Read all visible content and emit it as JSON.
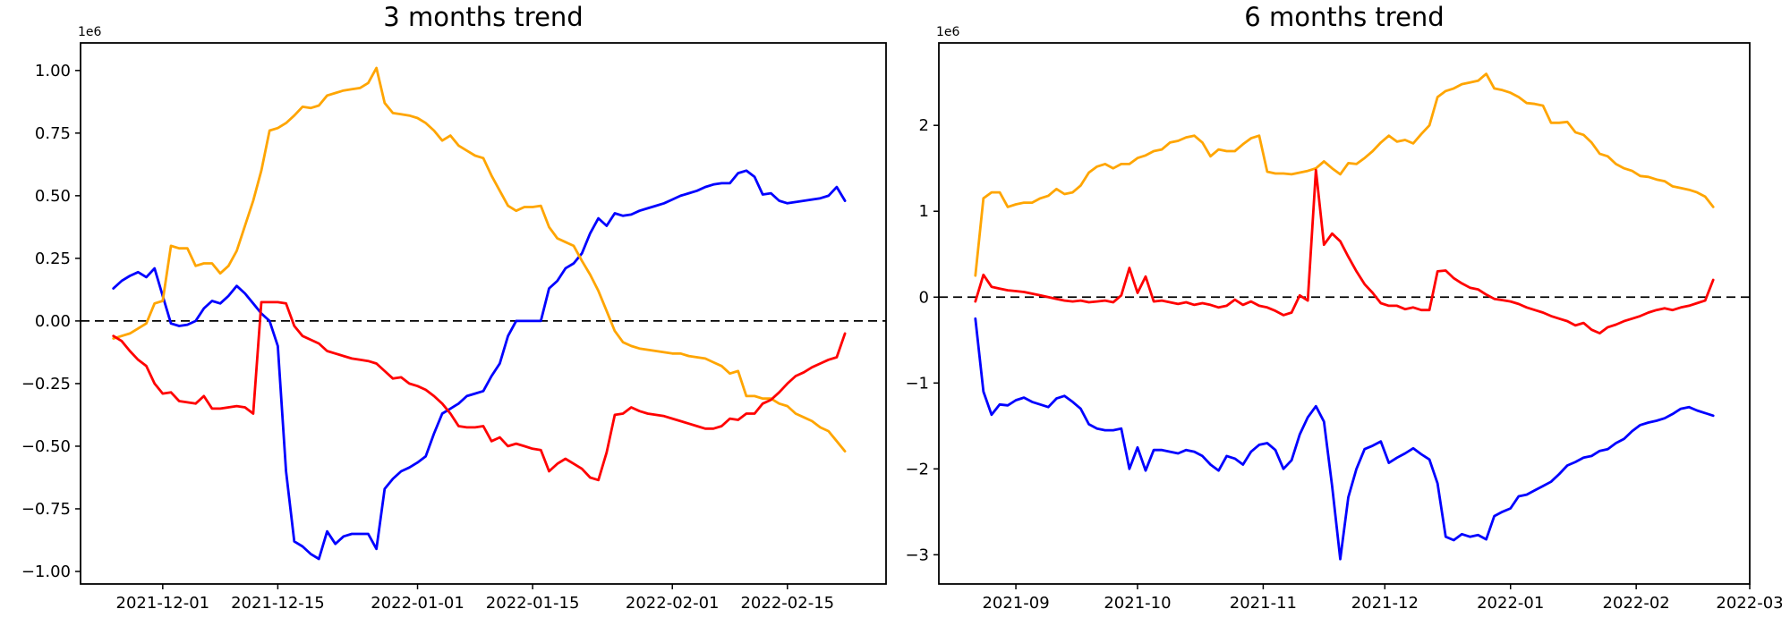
{
  "page": {
    "kind": "matplotlib-figure",
    "background": "#ffffff"
  },
  "chart_data": [
    {
      "type": "line",
      "title": "3 months trend",
      "offset_label": "1e6",
      "value_unit": "1e6 (values below are in millions)",
      "grid": false,
      "legend": "none",
      "zero_dashed_line": true,
      "xlim": [
        "2021-11-21",
        "2022-02-27"
      ],
      "ylim": [
        -1.05,
        1.11
      ],
      "xticks": [
        {
          "date": "2021-12-01",
          "label": "2021-12-01"
        },
        {
          "date": "2021-12-15",
          "label": "2021-12-15"
        },
        {
          "date": "2022-01-01",
          "label": "2022-01-01"
        },
        {
          "date": "2022-01-15",
          "label": "2022-01-15"
        },
        {
          "date": "2022-02-01",
          "label": "2022-02-01"
        },
        {
          "date": "2022-02-15",
          "label": "2022-02-15"
        }
      ],
      "yticks": [
        {
          "v": 1.0,
          "label": "1.00"
        },
        {
          "v": 0.75,
          "label": "0.75"
        },
        {
          "v": 0.5,
          "label": "0.50"
        },
        {
          "v": 0.25,
          "label": "0.25"
        },
        {
          "v": 0.0,
          "label": "0.00"
        },
        {
          "v": -0.25,
          "label": "−0.25"
        },
        {
          "v": -0.5,
          "label": "−0.50"
        },
        {
          "v": -0.75,
          "label": "−0.75"
        },
        {
          "v": -1.0,
          "label": "−1.00"
        }
      ],
      "x": [
        "2021-11-25",
        "2021-11-26",
        "2021-11-27",
        "2021-11-28",
        "2021-11-29",
        "2021-11-30",
        "2021-12-01",
        "2021-12-02",
        "2021-12-03",
        "2021-12-04",
        "2021-12-05",
        "2021-12-06",
        "2021-12-07",
        "2021-12-08",
        "2021-12-09",
        "2021-12-10",
        "2021-12-11",
        "2021-12-12",
        "2021-12-13",
        "2021-12-14",
        "2021-12-15",
        "2021-12-16",
        "2021-12-17",
        "2021-12-18",
        "2021-12-19",
        "2021-12-20",
        "2021-12-21",
        "2021-12-22",
        "2021-12-23",
        "2021-12-24",
        "2021-12-25",
        "2021-12-26",
        "2021-12-27",
        "2021-12-28",
        "2021-12-29",
        "2021-12-30",
        "2021-12-31",
        "2022-01-01",
        "2022-01-02",
        "2022-01-03",
        "2022-01-04",
        "2022-01-05",
        "2022-01-06",
        "2022-01-07",
        "2022-01-08",
        "2022-01-09",
        "2022-01-10",
        "2022-01-11",
        "2022-01-12",
        "2022-01-13",
        "2022-01-14",
        "2022-01-15",
        "2022-01-16",
        "2022-01-17",
        "2022-01-18",
        "2022-01-19",
        "2022-01-20",
        "2022-01-21",
        "2022-01-22",
        "2022-01-23",
        "2022-01-24",
        "2022-01-25",
        "2022-01-26",
        "2022-01-27",
        "2022-01-28",
        "2022-01-29",
        "2022-01-30",
        "2022-01-31",
        "2022-02-01",
        "2022-02-02",
        "2022-02-03",
        "2022-02-04",
        "2022-02-05",
        "2022-02-06",
        "2022-02-07",
        "2022-02-08",
        "2022-02-09",
        "2022-02-10",
        "2022-02-11",
        "2022-02-12",
        "2022-02-13",
        "2022-02-14",
        "2022-02-15",
        "2022-02-16",
        "2022-02-17",
        "2022-02-18",
        "2022-02-19",
        "2022-02-20",
        "2022-02-21",
        "2022-02-22"
      ],
      "series": [
        {
          "name": "blue",
          "color": "#0000ff",
          "values": [
            0.13,
            0.16,
            0.18,
            0.195,
            0.175,
            0.21,
            0.1,
            -0.01,
            -0.02,
            -0.015,
            0.0,
            0.05,
            0.08,
            0.07,
            0.1,
            0.14,
            0.11,
            0.07,
            0.03,
            0.0,
            -0.1,
            -0.6,
            -0.88,
            -0.9,
            -0.93,
            -0.95,
            -0.84,
            -0.89,
            -0.86,
            -0.85,
            -0.85,
            -0.85,
            -0.91,
            -0.67,
            -0.63,
            -0.6,
            -0.585,
            -0.565,
            -0.54,
            -0.45,
            -0.37,
            -0.35,
            -0.33,
            -0.3,
            -0.29,
            -0.28,
            -0.22,
            -0.17,
            -0.06,
            0.0,
            0.0,
            0.0,
            0.0,
            0.13,
            0.16,
            0.21,
            0.23,
            0.27,
            0.35,
            0.41,
            0.38,
            0.43,
            0.42,
            0.425,
            0.44,
            0.45,
            0.46,
            0.47,
            0.485,
            0.5,
            0.51,
            0.52,
            0.535,
            0.545,
            0.55,
            0.55,
            0.59,
            0.6,
            0.575,
            0.505,
            0.51,
            0.48,
            0.47,
            0.475,
            0.48,
            0.485,
            0.49,
            0.5,
            0.535,
            0.48
          ]
        },
        {
          "name": "orange",
          "color": "#ffa500",
          "values": [
            -0.07,
            -0.06,
            -0.05,
            -0.03,
            -0.01,
            0.07,
            0.08,
            0.3,
            0.29,
            0.29,
            0.22,
            0.23,
            0.23,
            0.19,
            0.22,
            0.28,
            0.38,
            0.48,
            0.6,
            0.76,
            0.77,
            0.79,
            0.82,
            0.855,
            0.85,
            0.86,
            0.9,
            0.91,
            0.92,
            0.925,
            0.93,
            0.95,
            1.01,
            0.87,
            0.83,
            0.825,
            0.82,
            0.81,
            0.79,
            0.76,
            0.72,
            0.74,
            0.7,
            0.68,
            0.66,
            0.65,
            0.58,
            0.52,
            0.46,
            0.44,
            0.455,
            0.455,
            0.46,
            0.375,
            0.33,
            0.315,
            0.3,
            0.24,
            0.185,
            0.12,
            0.04,
            -0.04,
            -0.085,
            -0.1,
            -0.11,
            -0.115,
            -0.12,
            -0.125,
            -0.13,
            -0.13,
            -0.14,
            -0.145,
            -0.15,
            -0.165,
            -0.18,
            -0.21,
            -0.2,
            -0.3,
            -0.3,
            -0.31,
            -0.31,
            -0.33,
            -0.34,
            -0.37,
            -0.385,
            -0.4,
            -0.425,
            -0.44,
            -0.48,
            -0.52
          ]
        },
        {
          "name": "red",
          "color": "#ff0000",
          "values": [
            -0.06,
            -0.08,
            -0.12,
            -0.155,
            -0.18,
            -0.25,
            -0.29,
            -0.285,
            -0.32,
            -0.325,
            -0.33,
            -0.3,
            -0.35,
            -0.35,
            -0.345,
            -0.34,
            -0.345,
            -0.37,
            0.075,
            0.075,
            0.075,
            0.07,
            -0.02,
            -0.06,
            -0.075,
            -0.09,
            -0.12,
            -0.13,
            -0.14,
            -0.15,
            -0.155,
            -0.16,
            -0.17,
            -0.2,
            -0.23,
            -0.225,
            -0.25,
            -0.26,
            -0.275,
            -0.3,
            -0.33,
            -0.37,
            -0.42,
            -0.425,
            -0.425,
            -0.42,
            -0.48,
            -0.465,
            -0.5,
            -0.49,
            -0.5,
            -0.51,
            -0.515,
            -0.6,
            -0.57,
            -0.55,
            -0.57,
            -0.59,
            -0.625,
            -0.635,
            -0.525,
            -0.375,
            -0.37,
            -0.345,
            -0.36,
            -0.37,
            -0.375,
            -0.38,
            -0.39,
            -0.4,
            -0.41,
            -0.42,
            -0.43,
            -0.43,
            -0.42,
            -0.39,
            -0.395,
            -0.37,
            -0.37,
            -0.33,
            -0.315,
            -0.285,
            -0.25,
            -0.22,
            -0.205,
            -0.185,
            -0.17,
            -0.155,
            -0.145,
            -0.05
          ]
        }
      ]
    },
    {
      "type": "line",
      "title": "6 months trend",
      "offset_label": "1e6",
      "value_unit": "1e6 (values below are in millions)",
      "grid": false,
      "legend": "none",
      "zero_dashed_line": true,
      "xlim": [
        "2021-08-13",
        "2022-03-01"
      ],
      "ylim": [
        -3.34,
        2.96
      ],
      "xticks": [
        {
          "date": "2021-09-01",
          "label": "2021-09"
        },
        {
          "date": "2021-10-01",
          "label": "2021-10"
        },
        {
          "date": "2021-11-01",
          "label": "2021-11"
        },
        {
          "date": "2021-12-01",
          "label": "2021-12"
        },
        {
          "date": "2022-01-01",
          "label": "2022-01"
        },
        {
          "date": "2022-02-01",
          "label": "2022-02"
        },
        {
          "date": "2022-03-01",
          "label": "2022-03"
        }
      ],
      "yticks": [
        {
          "v": 2,
          "label": "2"
        },
        {
          "v": 1,
          "label": "1"
        },
        {
          "v": 0,
          "label": "0"
        },
        {
          "v": -1,
          "label": "−1"
        },
        {
          "v": -2,
          "label": "−2"
        },
        {
          "v": -3,
          "label": "−3"
        }
      ],
      "x": [
        "2021-08-22",
        "2021-08-24",
        "2021-08-26",
        "2021-08-28",
        "2021-08-30",
        "2021-09-01",
        "2021-09-03",
        "2021-09-05",
        "2021-09-07",
        "2021-09-09",
        "2021-09-11",
        "2021-09-13",
        "2021-09-15",
        "2021-09-17",
        "2021-09-19",
        "2021-09-21",
        "2021-09-23",
        "2021-09-25",
        "2021-09-27",
        "2021-09-29",
        "2021-10-01",
        "2021-10-03",
        "2021-10-05",
        "2021-10-07",
        "2021-10-09",
        "2021-10-11",
        "2021-10-13",
        "2021-10-15",
        "2021-10-17",
        "2021-10-19",
        "2021-10-21",
        "2021-10-23",
        "2021-10-25",
        "2021-10-27",
        "2021-10-29",
        "2021-10-31",
        "2021-11-02",
        "2021-11-04",
        "2021-11-06",
        "2021-11-08",
        "2021-11-10",
        "2021-11-12",
        "2021-11-14",
        "2021-11-16",
        "2021-11-18",
        "2021-11-20",
        "2021-11-22",
        "2021-11-24",
        "2021-11-26",
        "2021-11-28",
        "2021-11-30",
        "2021-12-02",
        "2021-12-04",
        "2021-12-06",
        "2021-12-08",
        "2021-12-10",
        "2021-12-12",
        "2021-12-14",
        "2021-12-16",
        "2021-12-18",
        "2021-12-20",
        "2021-12-22",
        "2021-12-24",
        "2021-12-26",
        "2021-12-28",
        "2021-12-30",
        "2022-01-01",
        "2022-01-03",
        "2022-01-05",
        "2022-01-07",
        "2022-01-09",
        "2022-01-11",
        "2022-01-13",
        "2022-01-15",
        "2022-01-17",
        "2022-01-19",
        "2022-01-21",
        "2022-01-23",
        "2022-01-25",
        "2022-01-27",
        "2022-01-29",
        "2022-01-31",
        "2022-02-02",
        "2022-02-04",
        "2022-02-06",
        "2022-02-08",
        "2022-02-10",
        "2022-02-12",
        "2022-02-14",
        "2022-02-16",
        "2022-02-18",
        "2022-02-20"
      ],
      "series": [
        {
          "name": "blue",
          "color": "#0000ff",
          "values": [
            -0.25,
            -1.1,
            -1.37,
            -1.25,
            -1.26,
            -1.2,
            -1.17,
            -1.22,
            -1.25,
            -1.28,
            -1.18,
            -1.15,
            -1.22,
            -1.3,
            -1.48,
            -1.53,
            -1.55,
            -1.55,
            -1.53,
            -2.0,
            -1.75,
            -2.02,
            -1.78,
            -1.78,
            -1.8,
            -1.82,
            -1.78,
            -1.8,
            -1.85,
            -1.95,
            -2.02,
            -1.85,
            -1.88,
            -1.95,
            -1.8,
            -1.72,
            -1.7,
            -1.78,
            -2.0,
            -1.9,
            -1.6,
            -1.4,
            -1.27,
            -1.45,
            -2.2,
            -3.05,
            -2.33,
            -2.0,
            -1.77,
            -1.73,
            -1.68,
            -1.93,
            -1.87,
            -1.82,
            -1.76,
            -1.83,
            -1.89,
            -2.17,
            -2.79,
            -2.83,
            -2.76,
            -2.79,
            -2.77,
            -2.82,
            -2.55,
            -2.5,
            -2.46,
            -2.32,
            -2.3,
            -2.25,
            -2.2,
            -2.15,
            -2.06,
            -1.96,
            -1.92,
            -1.87,
            -1.85,
            -1.79,
            -1.77,
            -1.7,
            -1.65,
            -1.56,
            -1.49,
            -1.46,
            -1.44,
            -1.41,
            -1.36,
            -1.3,
            -1.28,
            -1.32,
            -1.35,
            -1.38
          ]
        },
        {
          "name": "orange",
          "color": "#ffa500",
          "values": [
            0.25,
            1.15,
            1.22,
            1.22,
            1.05,
            1.08,
            1.1,
            1.1,
            1.15,
            1.18,
            1.26,
            1.2,
            1.22,
            1.3,
            1.45,
            1.52,
            1.55,
            1.5,
            1.55,
            1.55,
            1.62,
            1.65,
            1.7,
            1.72,
            1.8,
            1.82,
            1.86,
            1.88,
            1.8,
            1.64,
            1.72,
            1.7,
            1.7,
            1.78,
            1.85,
            1.88,
            1.46,
            1.44,
            1.44,
            1.43,
            1.45,
            1.47,
            1.5,
            1.58,
            1.5,
            1.43,
            1.56,
            1.55,
            1.62,
            1.7,
            1.8,
            1.88,
            1.81,
            1.83,
            1.79,
            1.9,
            2.0,
            2.33,
            2.4,
            2.43,
            2.48,
            2.5,
            2.52,
            2.6,
            2.43,
            2.41,
            2.38,
            2.33,
            2.26,
            2.25,
            2.23,
            2.03,
            2.03,
            2.04,
            1.92,
            1.89,
            1.8,
            1.67,
            1.64,
            1.55,
            1.5,
            1.47,
            1.41,
            1.4,
            1.37,
            1.35,
            1.29,
            1.27,
            1.25,
            1.22,
            1.17,
            1.05
          ]
        },
        {
          "name": "red",
          "color": "#ff0000",
          "values": [
            -0.05,
            0.26,
            0.12,
            0.1,
            0.08,
            0.07,
            0.06,
            0.04,
            0.02,
            0.0,
            -0.02,
            -0.04,
            -0.05,
            -0.04,
            -0.06,
            -0.05,
            -0.04,
            -0.06,
            0.02,
            0.34,
            0.05,
            0.24,
            -0.05,
            -0.04,
            -0.06,
            -0.08,
            -0.06,
            -0.09,
            -0.07,
            -0.09,
            -0.12,
            -0.1,
            -0.03,
            -0.09,
            -0.05,
            -0.1,
            -0.12,
            -0.16,
            -0.21,
            -0.18,
            0.02,
            -0.04,
            1.48,
            0.61,
            0.74,
            0.65,
            0.47,
            0.3,
            0.15,
            0.05,
            -0.07,
            -0.1,
            -0.1,
            -0.14,
            -0.12,
            -0.15,
            -0.15,
            0.3,
            0.31,
            0.22,
            0.16,
            0.11,
            0.09,
            0.03,
            -0.02,
            -0.035,
            -0.05,
            -0.08,
            -0.12,
            -0.15,
            -0.18,
            -0.22,
            -0.25,
            -0.28,
            -0.33,
            -0.3,
            -0.38,
            -0.42,
            -0.35,
            -0.32,
            -0.28,
            -0.25,
            -0.22,
            -0.18,
            -0.15,
            -0.13,
            -0.15,
            -0.12,
            -0.1,
            -0.07,
            -0.04,
            0.2
          ]
        }
      ]
    }
  ]
}
